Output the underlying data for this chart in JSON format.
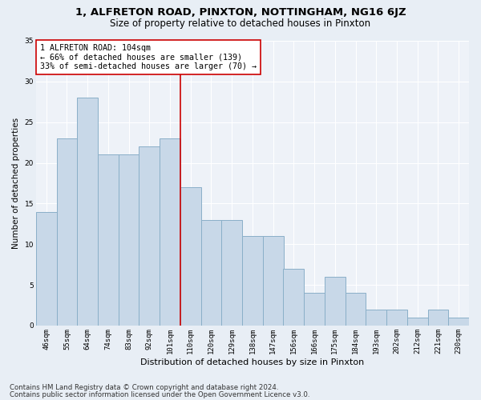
{
  "title1": "1, ALFRETON ROAD, PINXTON, NOTTINGHAM, NG16 6JZ",
  "title2": "Size of property relative to detached houses in Pinxton",
  "xlabel": "Distribution of detached houses by size in Pinxton",
  "ylabel": "Number of detached properties",
  "categories": [
    "46sqm",
    "55sqm",
    "64sqm",
    "74sqm",
    "83sqm",
    "92sqm",
    "101sqm",
    "110sqm",
    "120sqm",
    "129sqm",
    "138sqm",
    "147sqm",
    "156sqm",
    "166sqm",
    "175sqm",
    "184sqm",
    "193sqm",
    "202sqm",
    "212sqm",
    "221sqm",
    "230sqm"
  ],
  "values": [
    14,
    23,
    28,
    21,
    21,
    22,
    23,
    17,
    13,
    13,
    11,
    11,
    7,
    4,
    6,
    4,
    2,
    2,
    1,
    2,
    1
  ],
  "bar_color": "#c8d8e8",
  "bar_edge_color": "#8aafc8",
  "vline_color": "#cc0000",
  "annotation_text": "1 ALFRETON ROAD: 104sqm\n← 66% of detached houses are smaller (139)\n33% of semi-detached houses are larger (70) →",
  "annotation_box_color": "#ffffff",
  "annotation_box_edge_color": "#cc0000",
  "ylim": [
    0,
    35
  ],
  "yticks": [
    0,
    5,
    10,
    15,
    20,
    25,
    30,
    35
  ],
  "bg_color": "#e8eef5",
  "plot_bg_color": "#eef2f8",
  "footer1": "Contains HM Land Registry data © Crown copyright and database right 2024.",
  "footer2": "Contains public sector information licensed under the Open Government Licence v3.0.",
  "title1_fontsize": 9.5,
  "title2_fontsize": 8.5,
  "xlabel_fontsize": 8,
  "ylabel_fontsize": 7.5,
  "tick_fontsize": 6.5,
  "annotation_fontsize": 7.2,
  "footer_fontsize": 6.2
}
